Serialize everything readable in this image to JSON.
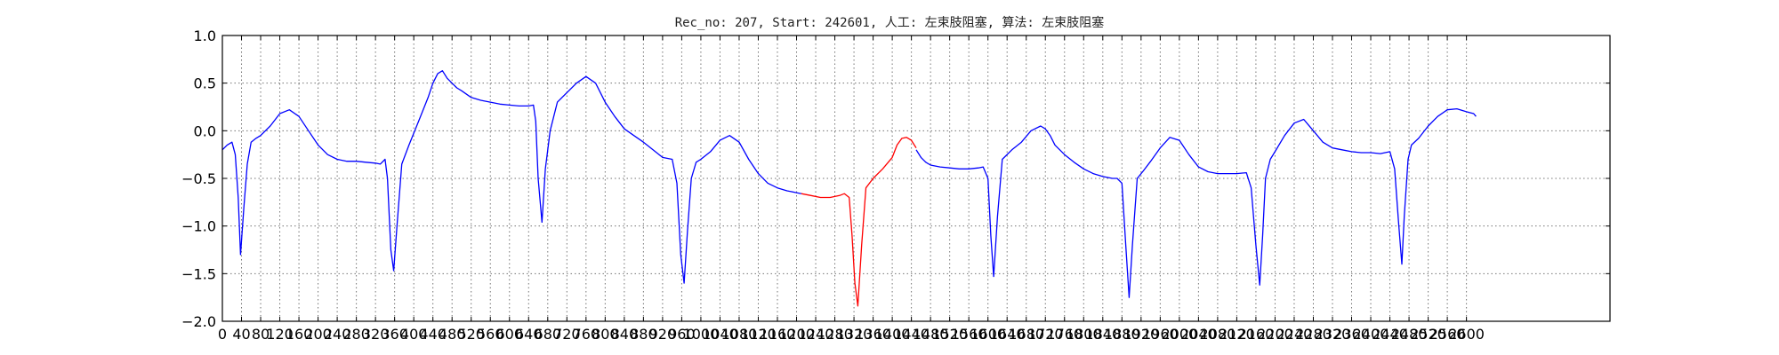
{
  "chart_data": {
    "type": "line",
    "title": "Rec_no: 207, Start: 242601, 人工: 左束肢阻塞, 算法: 左束肢阻塞",
    "xlabel": "",
    "ylabel": "",
    "xlim": [
      0,
      2900
    ],
    "ylim": [
      -2.0,
      1.0
    ],
    "grid": true,
    "x_ticks": [
      0,
      40,
      80,
      120,
      160,
      200,
      240,
      280,
      320,
      360,
      400,
      440,
      480,
      520,
      560,
      600,
      640,
      680,
      720,
      760,
      800,
      840,
      880,
      920,
      960,
      1000,
      1040,
      1080,
      1120,
      1160,
      1200,
      1240,
      1280,
      1320,
      1360,
      1400,
      1440,
      1480,
      1520,
      1560,
      1600,
      1640,
      1680,
      1720,
      1760,
      1800,
      1840,
      1880,
      1920,
      1960,
      2000,
      2040,
      2080,
      2120,
      2160,
      2200,
      2240,
      2280,
      2320,
      2360,
      2400,
      2440,
      2480,
      2520,
      2560,
      2600
    ],
    "x_tick_labels": [
      "0",
      "40",
      "80",
      "120",
      "160",
      "200",
      "240",
      "280",
      "320",
      "360",
      "400",
      "440",
      "480",
      "520",
      "560",
      "600",
      "640",
      "680",
      "720",
      "760",
      "800",
      "840",
      "880",
      "920",
      "960",
      "1000",
      "1040",
      "1080",
      "1120",
      "1160",
      "1200",
      "1240",
      "1280",
      "1320",
      "1360",
      "1400",
      "1440",
      "1480",
      "1520",
      "1560",
      "1600",
      "1640",
      "1680",
      "1720",
      "1760",
      "1800",
      "1840",
      "1880",
      "1920",
      "1960",
      "2000",
      "2040",
      "2080",
      "2120",
      "2160",
      "2200",
      "2240",
      "2280",
      "2320",
      "2360",
      "2400",
      "2440",
      "2480",
      "2520",
      "2560",
      "2600"
    ],
    "y_ticks": [
      1.0,
      0.5,
      0.0,
      -0.5,
      -1.0,
      -1.5,
      -2.0
    ],
    "y_tick_labels": [
      "1.0",
      "0.5",
      "0.0",
      "−0.5",
      "−1.0",
      "−1.5",
      "−2.0"
    ],
    "series": [
      {
        "color": "#0000ff",
        "x": [
          0,
          10,
          20,
          27,
          33,
          38,
          45,
          52,
          60,
          70,
          80,
          100,
          120,
          140,
          160,
          180,
          200,
          220,
          240,
          260,
          280,
          300,
          320,
          330,
          340,
          345,
          352,
          358,
          365,
          375,
          390,
          410,
          430,
          440,
          450,
          460,
          470,
          480,
          490,
          500,
          520,
          540,
          560,
          580,
          600,
          620,
          640,
          650,
          655,
          660,
          668,
          675,
          685,
          700,
          720,
          740,
          760,
          780,
          790,
          800,
          820,
          840,
          860,
          880,
          900,
          920,
          940,
          950,
          958,
          965,
          972,
          980,
          990,
          1000,
          1020,
          1040,
          1060,
          1080,
          1100,
          1120,
          1140,
          1160,
          1180,
          1200,
          1210
        ],
        "y": [
          -0.2,
          -0.15,
          -0.12,
          -0.25,
          -0.7,
          -1.3,
          -0.8,
          -0.35,
          -0.12,
          -0.08,
          -0.05,
          0.05,
          0.18,
          0.22,
          0.15,
          0.0,
          -0.15,
          -0.25,
          -0.3,
          -0.32,
          -0.32,
          -0.33,
          -0.34,
          -0.35,
          -0.3,
          -0.5,
          -1.25,
          -1.47,
          -1.0,
          -0.35,
          -0.15,
          0.1,
          0.35,
          0.5,
          0.6,
          0.63,
          0.55,
          0.5,
          0.45,
          0.42,
          0.35,
          0.32,
          0.3,
          0.28,
          0.27,
          0.26,
          0.26,
          0.27,
          0.1,
          -0.5,
          -0.96,
          -0.4,
          0.0,
          0.3,
          0.4,
          0.5,
          0.57,
          0.5,
          0.4,
          0.3,
          0.15,
          0.02,
          -0.05,
          -0.12,
          -0.2,
          -0.28,
          -0.3,
          -0.55,
          -1.3,
          -1.6,
          -1.05,
          -0.5,
          -0.33,
          -0.3,
          -0.22,
          -0.1,
          -0.05,
          -0.12,
          -0.3,
          -0.45,
          -0.55,
          -0.6,
          -0.63,
          -0.65,
          -0.66
        ]
      },
      {
        "color": "#ff0000",
        "x": [
          1210,
          1230,
          1250,
          1270,
          1290,
          1300,
          1310,
          1316,
          1322,
          1328,
          1336,
          1345,
          1360,
          1380,
          1400,
          1410,
          1420,
          1430,
          1440,
          1450
        ],
        "y": [
          -0.66,
          -0.68,
          -0.7,
          -0.7,
          -0.68,
          -0.66,
          -0.7,
          -1.1,
          -1.6,
          -1.84,
          -1.2,
          -0.6,
          -0.5,
          -0.4,
          -0.28,
          -0.15,
          -0.08,
          -0.07,
          -0.1,
          -0.18
        ]
      },
      {
        "color": "#0000ff",
        "x": [
          1450,
          1460,
          1470,
          1480,
          1500,
          1520,
          1540,
          1560,
          1580,
          1590,
          1600,
          1606,
          1612,
          1620,
          1630,
          1650,
          1670,
          1690,
          1710,
          1720,
          1730,
          1740,
          1760,
          1780,
          1800,
          1820,
          1840,
          1860,
          1870,
          1880,
          1888,
          1895,
          1902,
          1912,
          1925,
          1940,
          1960,
          1980,
          2000,
          2020,
          2040,
          2060,
          2080,
          2100,
          2120,
          2140,
          2150,
          2160,
          2168,
          2174,
          2180,
          2190,
          2200,
          2220,
          2240,
          2260,
          2270,
          2280,
          2300,
          2320,
          2340,
          2360,
          2380,
          2400,
          2420,
          2440,
          2450,
          2458,
          2465,
          2470,
          2478,
          2485,
          2500,
          2520,
          2540,
          2560,
          2580,
          2600,
          2615,
          2620
        ],
        "y": [
          -0.2,
          -0.28,
          -0.33,
          -0.36,
          -0.38,
          -0.39,
          -0.4,
          -0.4,
          -0.39,
          -0.38,
          -0.5,
          -1.1,
          -1.53,
          -0.9,
          -0.3,
          -0.2,
          -0.12,
          0.0,
          0.05,
          0.02,
          -0.05,
          -0.15,
          -0.25,
          -0.33,
          -0.4,
          -0.45,
          -0.48,
          -0.5,
          -0.5,
          -0.55,
          -1.2,
          -1.75,
          -1.2,
          -0.5,
          -0.42,
          -0.32,
          -0.18,
          -0.07,
          -0.1,
          -0.25,
          -0.38,
          -0.43,
          -0.45,
          -0.45,
          -0.45,
          -0.44,
          -0.6,
          -1.2,
          -1.62,
          -1.1,
          -0.5,
          -0.3,
          -0.22,
          -0.05,
          0.08,
          0.12,
          0.06,
          0.0,
          -0.12,
          -0.18,
          -0.2,
          -0.22,
          -0.23,
          -0.23,
          -0.24,
          -0.22,
          -0.4,
          -0.95,
          -1.4,
          -0.9,
          -0.3,
          -0.15,
          -0.08,
          0.05,
          0.15,
          0.22,
          0.23,
          0.2,
          0.18,
          0.15
        ]
      }
    ]
  }
}
